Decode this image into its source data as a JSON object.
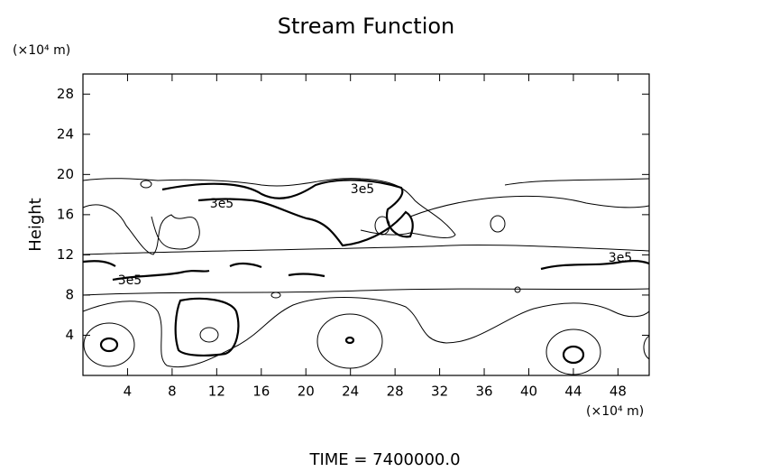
{
  "chart_data": {
    "type": "contour",
    "title": "Stream Function",
    "y_label": "Height",
    "y_unit": "(×10⁴ m)",
    "x_unit": "(×10⁴ m)",
    "footer": "TIME = 7400000.0",
    "contour_labels": [
      "3e5",
      "3e5",
      "3e5",
      "3e5"
    ],
    "xlim": [
      0,
      50.8
    ],
    "ylim": [
      0,
      30
    ],
    "xticks": [
      4,
      8,
      12,
      16,
      20,
      24,
      28,
      32,
      36,
      40,
      44,
      48
    ],
    "yticks": [
      4,
      8,
      12,
      16,
      20,
      24,
      28
    ],
    "color": "#000000"
  }
}
